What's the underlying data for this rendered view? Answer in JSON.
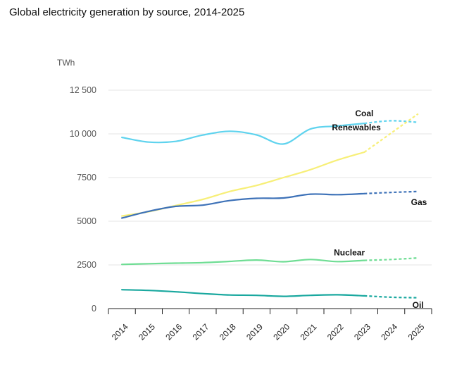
{
  "title": "Global electricity generation by source, 2014-2025",
  "chart_data": {
    "type": "line",
    "title": "Global electricity generation by source, 2014-2025",
    "ylabel": "TWh",
    "xlabel": "",
    "ylim": [
      0,
      12500
    ],
    "yticks": [
      0,
      2500,
      5000,
      7500,
      10000,
      12500
    ],
    "ytick_labels": [
      "0",
      "2500",
      "5000",
      "7500",
      "10 000",
      "12 500"
    ],
    "x": [
      "2014",
      "2015",
      "2016",
      "2017",
      "2018",
      "2019",
      "2020",
      "2021",
      "2022",
      "2023",
      "2024",
      "2025"
    ],
    "grid": "horizontal",
    "projection_from": "2023",
    "series": [
      {
        "name": "Coal",
        "color": "#5fd3ee",
        "values": [
          9800,
          9530,
          9570,
          9930,
          10150,
          9940,
          9420,
          10280,
          10450,
          10600,
          10750,
          10660
        ]
      },
      {
        "name": "Renewables",
        "color": "#f7ef78",
        "values": [
          5300,
          5550,
          5900,
          6250,
          6700,
          7050,
          7500,
          7950,
          8500,
          8950,
          10050,
          11150
        ]
      },
      {
        "name": "Gas",
        "color": "#3e72b8",
        "values": [
          5180,
          5570,
          5850,
          5920,
          6180,
          6310,
          6330,
          6550,
          6520,
          6580,
          6650,
          6700
        ]
      },
      {
        "name": "Nuclear",
        "color": "#6fdd94",
        "values": [
          2530,
          2570,
          2600,
          2630,
          2700,
          2780,
          2680,
          2810,
          2690,
          2760,
          2810,
          2900
        ]
      },
      {
        "name": "Oil",
        "color": "#1aa89f",
        "values": [
          1080,
          1040,
          960,
          860,
          780,
          760,
          700,
          760,
          790,
          730,
          650,
          620
        ]
      }
    ]
  }
}
